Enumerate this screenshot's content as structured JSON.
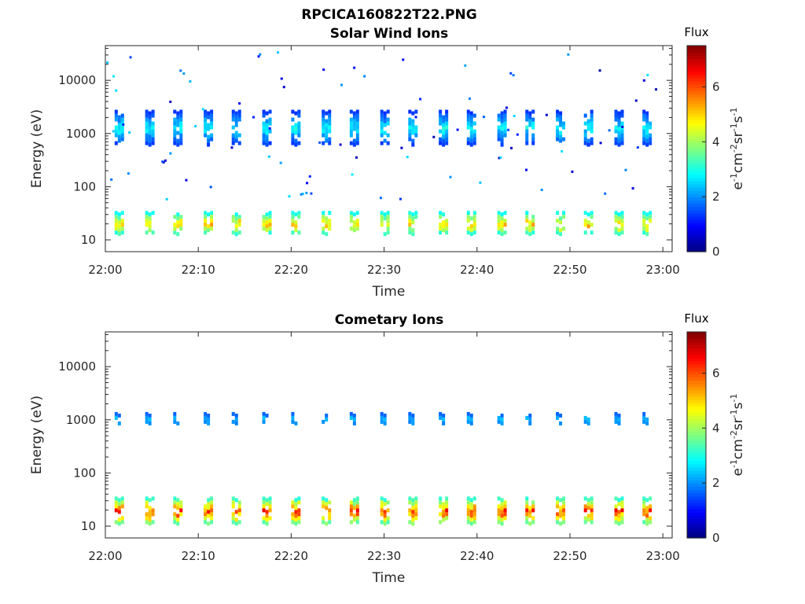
{
  "figure_title": "RPCICA160822T22.PNG",
  "chart_data": [
    {
      "type": "heatmap",
      "title": "Solar Wind Ions",
      "xlabel": "Time",
      "ylabel": "Energy (eV)",
      "x_tick_labels": [
        "22:00",
        "22:10",
        "22:20",
        "22:30",
        "22:40",
        "22:50",
        "23:00"
      ],
      "x_ticks_min": [
        0,
        10,
        20,
        30,
        40,
        50,
        60
      ],
      "xlim_min": [
        0,
        61
      ],
      "y_scale": "log",
      "y_tick_labels": [
        "10",
        "100",
        "1000",
        "10000"
      ],
      "y_ticks": [
        10,
        100,
        1000,
        10000
      ],
      "ylim": [
        6,
        45000
      ],
      "colorbar": {
        "label": "Flux",
        "unit": "eV-1cm-2sr-1s-1",
        "range": [
          0,
          7.5
        ],
        "tick_labels": [
          "0",
          "2",
          "4",
          "6"
        ],
        "ticks": [
          0,
          2,
          4,
          6
        ],
        "colormap": "jet"
      },
      "sweep_times_min": [
        1.0,
        4.2,
        7.3,
        10.5,
        13.6,
        16.8,
        20.0,
        23.2,
        26.3,
        29.5,
        32.6,
        35.8,
        38.9,
        42.1,
        45.2,
        48.4,
        51.5,
        54.7,
        57.8
      ],
      "bands": [
        {
          "energy_range": [
            700,
            2800
          ],
          "flux_range": [
            1.0,
            3.2
          ]
        },
        {
          "energy_range": [
            14,
            35
          ],
          "flux_range": [
            2.4,
            5.8
          ]
        }
      ],
      "grid": false
    },
    {
      "type": "heatmap",
      "title": "Cometary Ions",
      "xlabel": "Time",
      "ylabel": "Energy (eV)",
      "x_tick_labels": [
        "22:00",
        "22:10",
        "22:20",
        "22:30",
        "22:40",
        "22:50",
        "23:00"
      ],
      "x_ticks_min": [
        0,
        10,
        20,
        30,
        40,
        50,
        60
      ],
      "xlim_min": [
        0,
        61
      ],
      "y_scale": "log",
      "y_tick_labels": [
        "10",
        "100",
        "1000",
        "10000"
      ],
      "y_ticks": [
        10,
        100,
        1000,
        10000
      ],
      "ylim": [
        6,
        45000
      ],
      "colorbar": {
        "label": "Flux",
        "unit": "eV-1cm-2sr-1s-1",
        "range": [
          0,
          7.5
        ],
        "tick_labels": [
          "0",
          "2",
          "4",
          "6"
        ],
        "ticks": [
          0,
          2,
          4,
          6
        ],
        "colormap": "jet"
      },
      "sweep_times_min": [
        1.0,
        4.2,
        7.3,
        10.5,
        13.6,
        16.8,
        20.0,
        23.2,
        26.3,
        29.5,
        32.6,
        35.8,
        38.9,
        42.1,
        45.2,
        48.4,
        51.5,
        54.7,
        57.8
      ],
      "bands": [
        {
          "energy_range": [
            900,
            1400
          ],
          "flux_range": [
            1.5,
            2.6
          ]
        },
        {
          "energy_range": [
            12,
            36
          ],
          "flux_range": [
            2.5,
            7.0
          ]
        }
      ],
      "grid": false
    }
  ]
}
